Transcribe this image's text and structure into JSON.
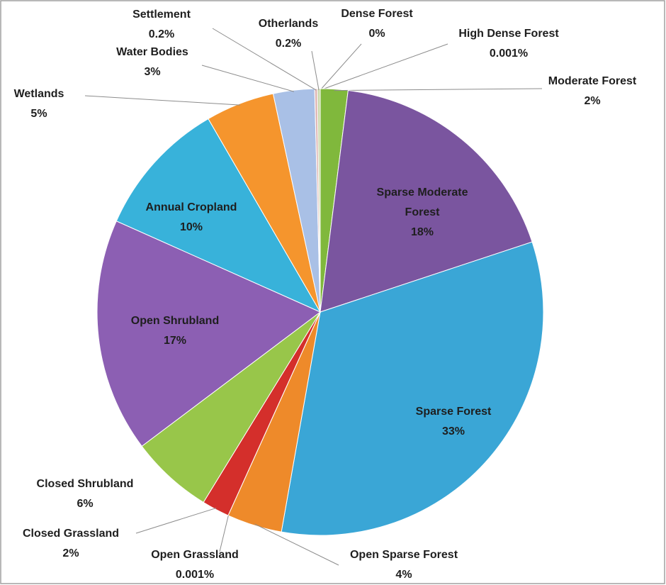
{
  "chart_data": {
    "type": "pie",
    "categories": [
      "Dense Forest",
      "High Dense Forest",
      "Moderate Forest",
      "Sparse Moderate Forest",
      "Sparse Forest",
      "Open Sparse Forest",
      "Open Grassland",
      "Closed Grassland",
      "Closed Shrubland",
      "Open Shrubland",
      "Annual Cropland",
      "Wetlands",
      "Water Bodies",
      "Settlement",
      "Otherlands"
    ],
    "values": [
      0,
      0.001,
      2,
      18,
      33,
      4,
      0.001,
      2,
      6,
      17,
      10,
      5,
      3,
      0.2,
      0.2
    ],
    "value_labels": [
      "0%",
      "0.001%",
      "2%",
      "18%",
      "33%",
      "4%",
      "0.001%",
      "2%",
      "6%",
      "17%",
      "10%",
      "5%",
      "3%",
      "0.2%",
      "0.2%"
    ],
    "colors": [
      "#5a8f2e",
      "#2e6fa8",
      "#80b83c",
      "#7a559f",
      "#3aa6d6",
      "#ee8a2a",
      "#c0504d",
      "#d42f2b",
      "#98c64a",
      "#8c5fb3",
      "#38b2da",
      "#f5952d",
      "#a9c0e6",
      "#e0b8b6",
      "#c9d7a9"
    ]
  }
}
